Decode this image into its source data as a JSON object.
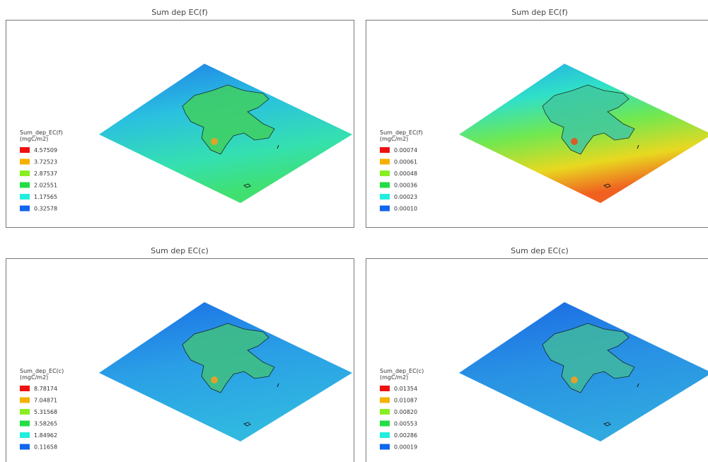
{
  "panels": [
    {
      "title": "Sum dep EC(f)",
      "legend_title": "Sum_dep_EC(f)",
      "legend_unit": "(mgC/m2)",
      "legend": [
        {
          "label": "4.57509",
          "color": "#ee1111"
        },
        {
          "label": "3.72523",
          "color": "#f5b000"
        },
        {
          "label": "2.87537",
          "color": "#88ee22"
        },
        {
          "label": "2.02551",
          "color": "#22dd44"
        },
        {
          "label": "1.17565",
          "color": "#22eedd"
        },
        {
          "label": "0.32578",
          "color": "#1166ee"
        }
      ]
    },
    {
      "title": "Sum dep EC(f)",
      "legend_title": "Sum_dep_EC(f)",
      "legend_unit": "(mgC/m2)",
      "legend": [
        {
          "label": "0.00074",
          "color": "#ee1111"
        },
        {
          "label": "0.00061",
          "color": "#f5b000"
        },
        {
          "label": "0.00048",
          "color": "#88ee22"
        },
        {
          "label": "0.00036",
          "color": "#22dd44"
        },
        {
          "label": "0.00023",
          "color": "#22eedd"
        },
        {
          "label": "0.00010",
          "color": "#1166ee"
        }
      ]
    },
    {
      "title": "Sum dep EC(c)",
      "legend_title": "Sum_dep_EC(c)",
      "legend_unit": "(mgC/m2)",
      "legend": [
        {
          "label": "8.78174",
          "color": "#ee1111"
        },
        {
          "label": "7.04871",
          "color": "#f5b000"
        },
        {
          "label": "5.31568",
          "color": "#88ee22"
        },
        {
          "label": "3.58265",
          "color": "#22dd44"
        },
        {
          "label": "1.84962",
          "color": "#22eedd"
        },
        {
          "label": "0.11658",
          "color": "#1166ee"
        }
      ]
    },
    {
      "title": "Sum dep EC(c)",
      "legend_title": "Sum_dep_EC(c)",
      "legend_unit": "(mgC/m2)",
      "legend": [
        {
          "label": "0.01354",
          "color": "#ee1111"
        },
        {
          "label": "0.01087",
          "color": "#f5b000"
        },
        {
          "label": "0.00820",
          "color": "#88ee22"
        },
        {
          "label": "0.00553",
          "color": "#22dd44"
        },
        {
          "label": "0.00286",
          "color": "#22eedd"
        },
        {
          "label": "0.00019",
          "color": "#1166ee"
        }
      ]
    }
  ]
}
